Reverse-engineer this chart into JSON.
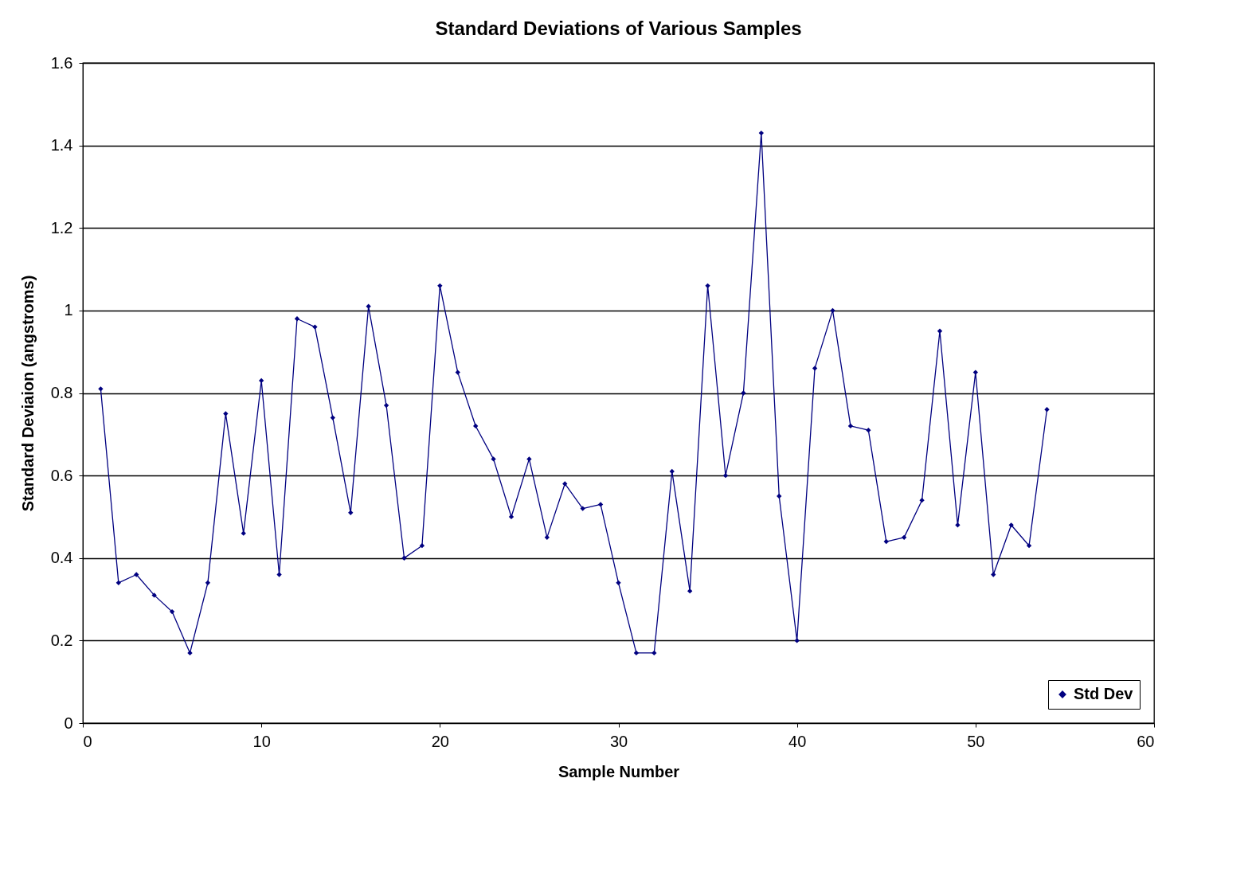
{
  "chart_data": {
    "type": "line",
    "title": "Standard Deviations of Various Samples",
    "xlabel": "Sample Number",
    "ylabel": "Standard Deviaion (angstroms)",
    "x": [
      1,
      2,
      3,
      4,
      5,
      6,
      7,
      8,
      9,
      10,
      11,
      12,
      13,
      14,
      15,
      16,
      17,
      18,
      19,
      20,
      21,
      22,
      23,
      24,
      25,
      26,
      27,
      28,
      29,
      30,
      31,
      32,
      33,
      34,
      35,
      36,
      37,
      38,
      39,
      40,
      41,
      42,
      43,
      44,
      45,
      46,
      47,
      48,
      49,
      50,
      51,
      52,
      53,
      54
    ],
    "series": [
      {
        "name": "Std Dev",
        "color": "#000080",
        "values": [
          0.81,
          0.34,
          0.36,
          0.31,
          0.27,
          0.17,
          0.34,
          0.75,
          0.46,
          0.83,
          0.36,
          0.98,
          0.96,
          0.74,
          0.51,
          1.01,
          0.77,
          0.4,
          0.43,
          1.06,
          0.85,
          0.72,
          0.64,
          0.5,
          0.64,
          0.45,
          0.58,
          0.52,
          0.53,
          0.34,
          0.17,
          0.17,
          0.61,
          0.32,
          1.06,
          0.6,
          0.8,
          1.43,
          0.55,
          0.2,
          0.86,
          1.0,
          0.72,
          0.71,
          0.44,
          0.45,
          0.54,
          0.95,
          0.48,
          0.85,
          0.36,
          0.48,
          0.43,
          0.76
        ]
      }
    ],
    "xlim": [
      0,
      60
    ],
    "xticks": [
      0,
      10,
      20,
      30,
      40,
      50,
      60
    ],
    "ylim": [
      0,
      1.6
    ],
    "yticks": [
      0,
      0.2,
      0.4,
      0.6,
      0.8,
      1,
      1.2,
      1.4,
      1.6
    ],
    "grid": "y",
    "legend": "bottom right",
    "marker": "diamond",
    "line_style": "solid"
  }
}
